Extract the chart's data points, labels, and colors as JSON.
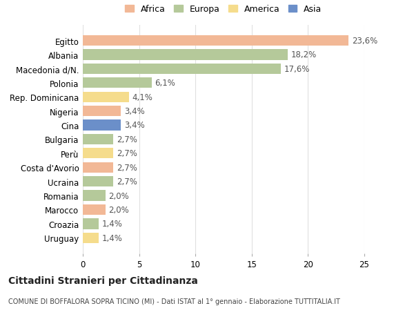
{
  "categories": [
    "Egitto",
    "Albania",
    "Macedonia d/N.",
    "Polonia",
    "Rep. Dominicana",
    "Nigeria",
    "Cina",
    "Bulgaria",
    "Perù",
    "Costa d'Avorio",
    "Ucraina",
    "Romania",
    "Marocco",
    "Croazia",
    "Uruguay"
  ],
  "values": [
    23.6,
    18.2,
    17.6,
    6.1,
    4.1,
    3.4,
    3.4,
    2.7,
    2.7,
    2.7,
    2.7,
    2.0,
    2.0,
    1.4,
    1.4
  ],
  "labels": [
    "23,6%",
    "18,2%",
    "17,6%",
    "6,1%",
    "4,1%",
    "3,4%",
    "3,4%",
    "2,7%",
    "2,7%",
    "2,7%",
    "2,7%",
    "2,0%",
    "2,0%",
    "1,4%",
    "1,4%"
  ],
  "continent": [
    "Africa",
    "Europa",
    "Europa",
    "Europa",
    "America",
    "Africa",
    "Asia",
    "Europa",
    "America",
    "Africa",
    "Europa",
    "Europa",
    "Africa",
    "Europa",
    "America"
  ],
  "colors": {
    "Africa": "#F2B896",
    "Europa": "#B5C99A",
    "America": "#F5DC8C",
    "Asia": "#6B8FC9"
  },
  "title": "Cittadini Stranieri per Cittadinanza",
  "subtitle": "COMUNE DI BOFFALORA SOPRA TICINO (MI) - Dati ISTAT al 1° gennaio - Elaborazione TUTTITALIA.IT",
  "xlim": [
    0,
    25
  ],
  "xticks": [
    0,
    5,
    10,
    15,
    20,
    25
  ],
  "background_color": "#ffffff",
  "grid_color": "#e0e0e0"
}
